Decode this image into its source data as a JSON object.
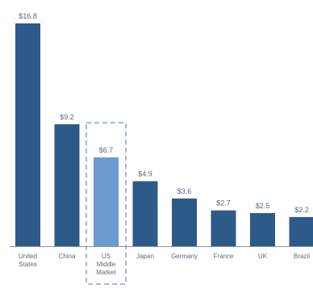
{
  "chart_data": {
    "type": "bar",
    "title": "",
    "xlabel": "",
    "ylabel": "",
    "categories": [
      [
        "United",
        "States"
      ],
      [
        "China"
      ],
      [
        "US",
        "Middle",
        "Market"
      ],
      [
        "Japan"
      ],
      [
        "Germany"
      ],
      [
        "France"
      ],
      [
        "UK"
      ],
      [
        "Brazil"
      ]
    ],
    "values": [
      16.8,
      9.2,
      6.7,
      4.9,
      3.6,
      2.7,
      2.5,
      2.2
    ],
    "value_labels": [
      "$16.8",
      "$9.2",
      "$6.7",
      "$4.9",
      "$3.6",
      "$2.7",
      "$2.5",
      "$2.2"
    ],
    "highlight_index": 2,
    "ylim": [
      0,
      16.8
    ],
    "grid": false,
    "colors": {
      "bar": "#2e5a8a",
      "highlight_bar": "#6b9bd1",
      "highlight_border": "#9fbddb",
      "baseline": "#8a96a3",
      "label": "#5a6a7a"
    }
  }
}
